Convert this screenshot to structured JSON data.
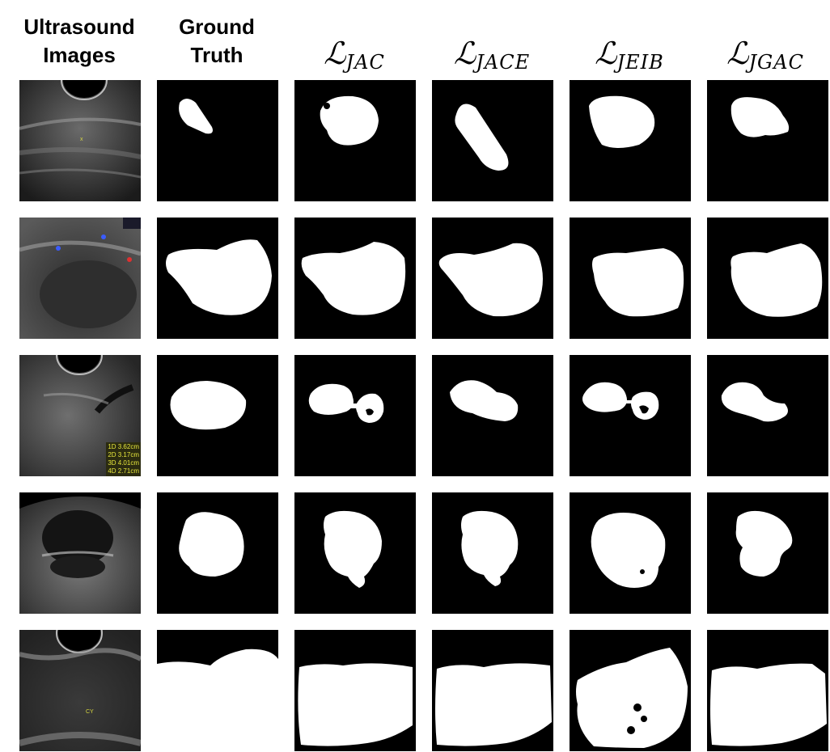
{
  "headers": {
    "col1": "Ultrasound\nImages",
    "col2": "Ground\nTruth",
    "col3_main": "ℒ",
    "col3_sub": "JAC",
    "col4_main": "ℒ",
    "col4_sub": "JACE",
    "col5_main": "ℒ",
    "col5_sub": "JEIB",
    "col6_main": "ℒ",
    "col6_sub": "JGAC"
  },
  "row3_measurements": [
    "1D 3.62cm",
    "2D 3.17cm",
    "3D 4.01cm",
    "4D 2.71cm"
  ],
  "row5_labels": {
    "cy": "CY"
  }
}
